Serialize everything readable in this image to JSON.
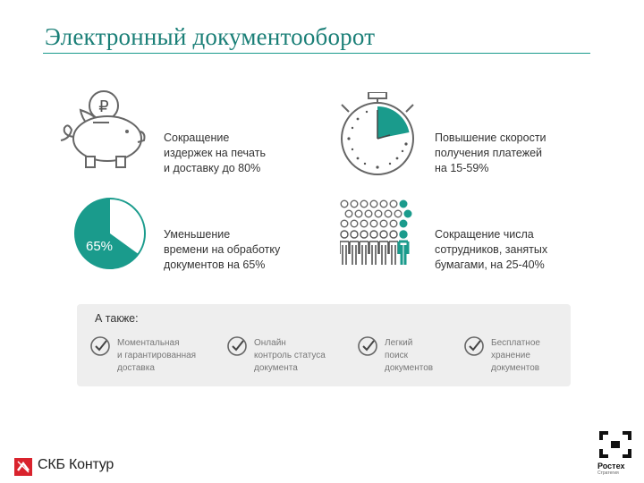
{
  "title": "Электронный документооборот",
  "benefits": [
    {
      "text": "Сокращение\nиздержек на печать\nи доставку до 80%",
      "icon": "piggy-bank-icon"
    },
    {
      "text": "Повышение скорости\nполучения платежей\nна 15-59%",
      "icon": "stopwatch-icon"
    },
    {
      "text": "Уменьшение\nвремени на обработку\nдокументов на 65%",
      "icon": "pie-chart-icon",
      "percent_label": "65%",
      "percent_value": 65
    },
    {
      "text": "Сокращение числа\nсотрудников, занятых\nбумагами, на 25-40%",
      "icon": "people-icon"
    }
  ],
  "also": {
    "heading": "А также:",
    "items": [
      {
        "text": "Моментальная\nи гарантированная\nдоставка",
        "icon": "check-circle-icon"
      },
      {
        "text": "Онлайн\nконтроль статуса\nдокумента",
        "icon": "check-circle-icon"
      },
      {
        "text": "Легкий\nпоиск\nдокументов",
        "icon": "check-circle-icon"
      },
      {
        "text": "Бесплатное\nхранение\nдокументов",
        "icon": "check-circle-icon"
      }
    ]
  },
  "footer": {
    "left_logo_text": "СКБ Контур",
    "right_logo_name": "Ростех",
    "right_logo_sub": "Стратегия"
  },
  "colors": {
    "accent": "#1a9b8c",
    "title": "#1a7f77",
    "panel": "#eeeeee",
    "outline": "#666666"
  }
}
